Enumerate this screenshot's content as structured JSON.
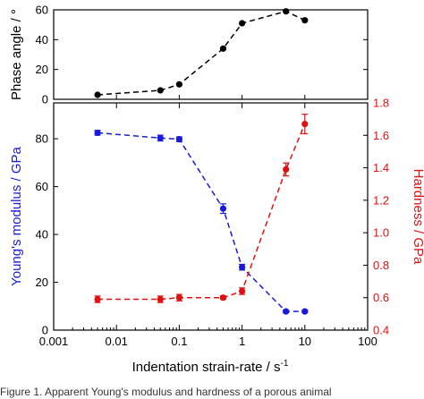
{
  "chart_data": [
    {
      "id": "phase",
      "type": "line",
      "xscale": "log",
      "xlim": [
        0.001,
        100
      ],
      "ylim": [
        0,
        60
      ],
      "yticks": [
        0,
        20,
        40,
        60
      ],
      "ylabel": "Phase angle / °",
      "color": "#000000",
      "series": [
        {
          "x": [
            0.005,
            0.05,
            0.1,
            0.5,
            1,
            5,
            10
          ],
          "y": [
            3,
            6,
            10,
            34,
            51,
            59,
            53
          ]
        }
      ]
    },
    {
      "id": "modulus_hardness",
      "type": "line",
      "xscale": "log",
      "xlim": [
        0.001,
        100
      ],
      "xticks": [
        0.001,
        0.01,
        0.1,
        1,
        10,
        100
      ],
      "xticklabels": [
        "0.001",
        "0.01",
        "0.1",
        "1",
        "10",
        "100"
      ],
      "xlabel": "Indentation strain-rate / s",
      "xlabel_sup": "-1",
      "y_left": {
        "label": "Young's modulus / GPa",
        "ylim": [
          0,
          95
        ],
        "ticks": [
          0,
          20,
          40,
          60,
          80
        ],
        "color": "#1a1adb"
      },
      "y_right": {
        "label": "Hardness / GPa",
        "ylim": [
          0.4,
          1.8
        ],
        "ticks": [
          0.4,
          0.6,
          0.8,
          1.0,
          1.2,
          1.4,
          1.6,
          1.8
        ],
        "ticklabels": [
          "0.4",
          "0.6",
          "0.8",
          "1.0",
          "1.2",
          "1.4",
          "1.6",
          "1.8"
        ],
        "color": "#e01010"
      },
      "series": [
        {
          "axis": "left",
          "color": "#1a1adb",
          "x": [
            0.005,
            0.05,
            0.1,
            0.5,
            1,
            5,
            10
          ],
          "y": [
            82.5,
            80.3,
            79.8,
            50.8,
            26.3,
            7.8,
            7.8
          ],
          "err": [
            1.0,
            1.2,
            1.0,
            2.0,
            1.2,
            0.5,
            0.5
          ]
        },
        {
          "axis": "right",
          "color": "#e01010",
          "x": [
            0.005,
            0.05,
            0.1,
            0.5,
            1,
            5,
            10
          ],
          "y": [
            0.59,
            0.59,
            0.6,
            0.6,
            0.64,
            1.39,
            1.67
          ],
          "err": [
            0.02,
            0.02,
            0.02,
            0.01,
            0.02,
            0.04,
            0.06
          ]
        }
      ]
    }
  ],
  "caption": "Figure 1. Apparent Young's modulus and hardness of a porous animal"
}
